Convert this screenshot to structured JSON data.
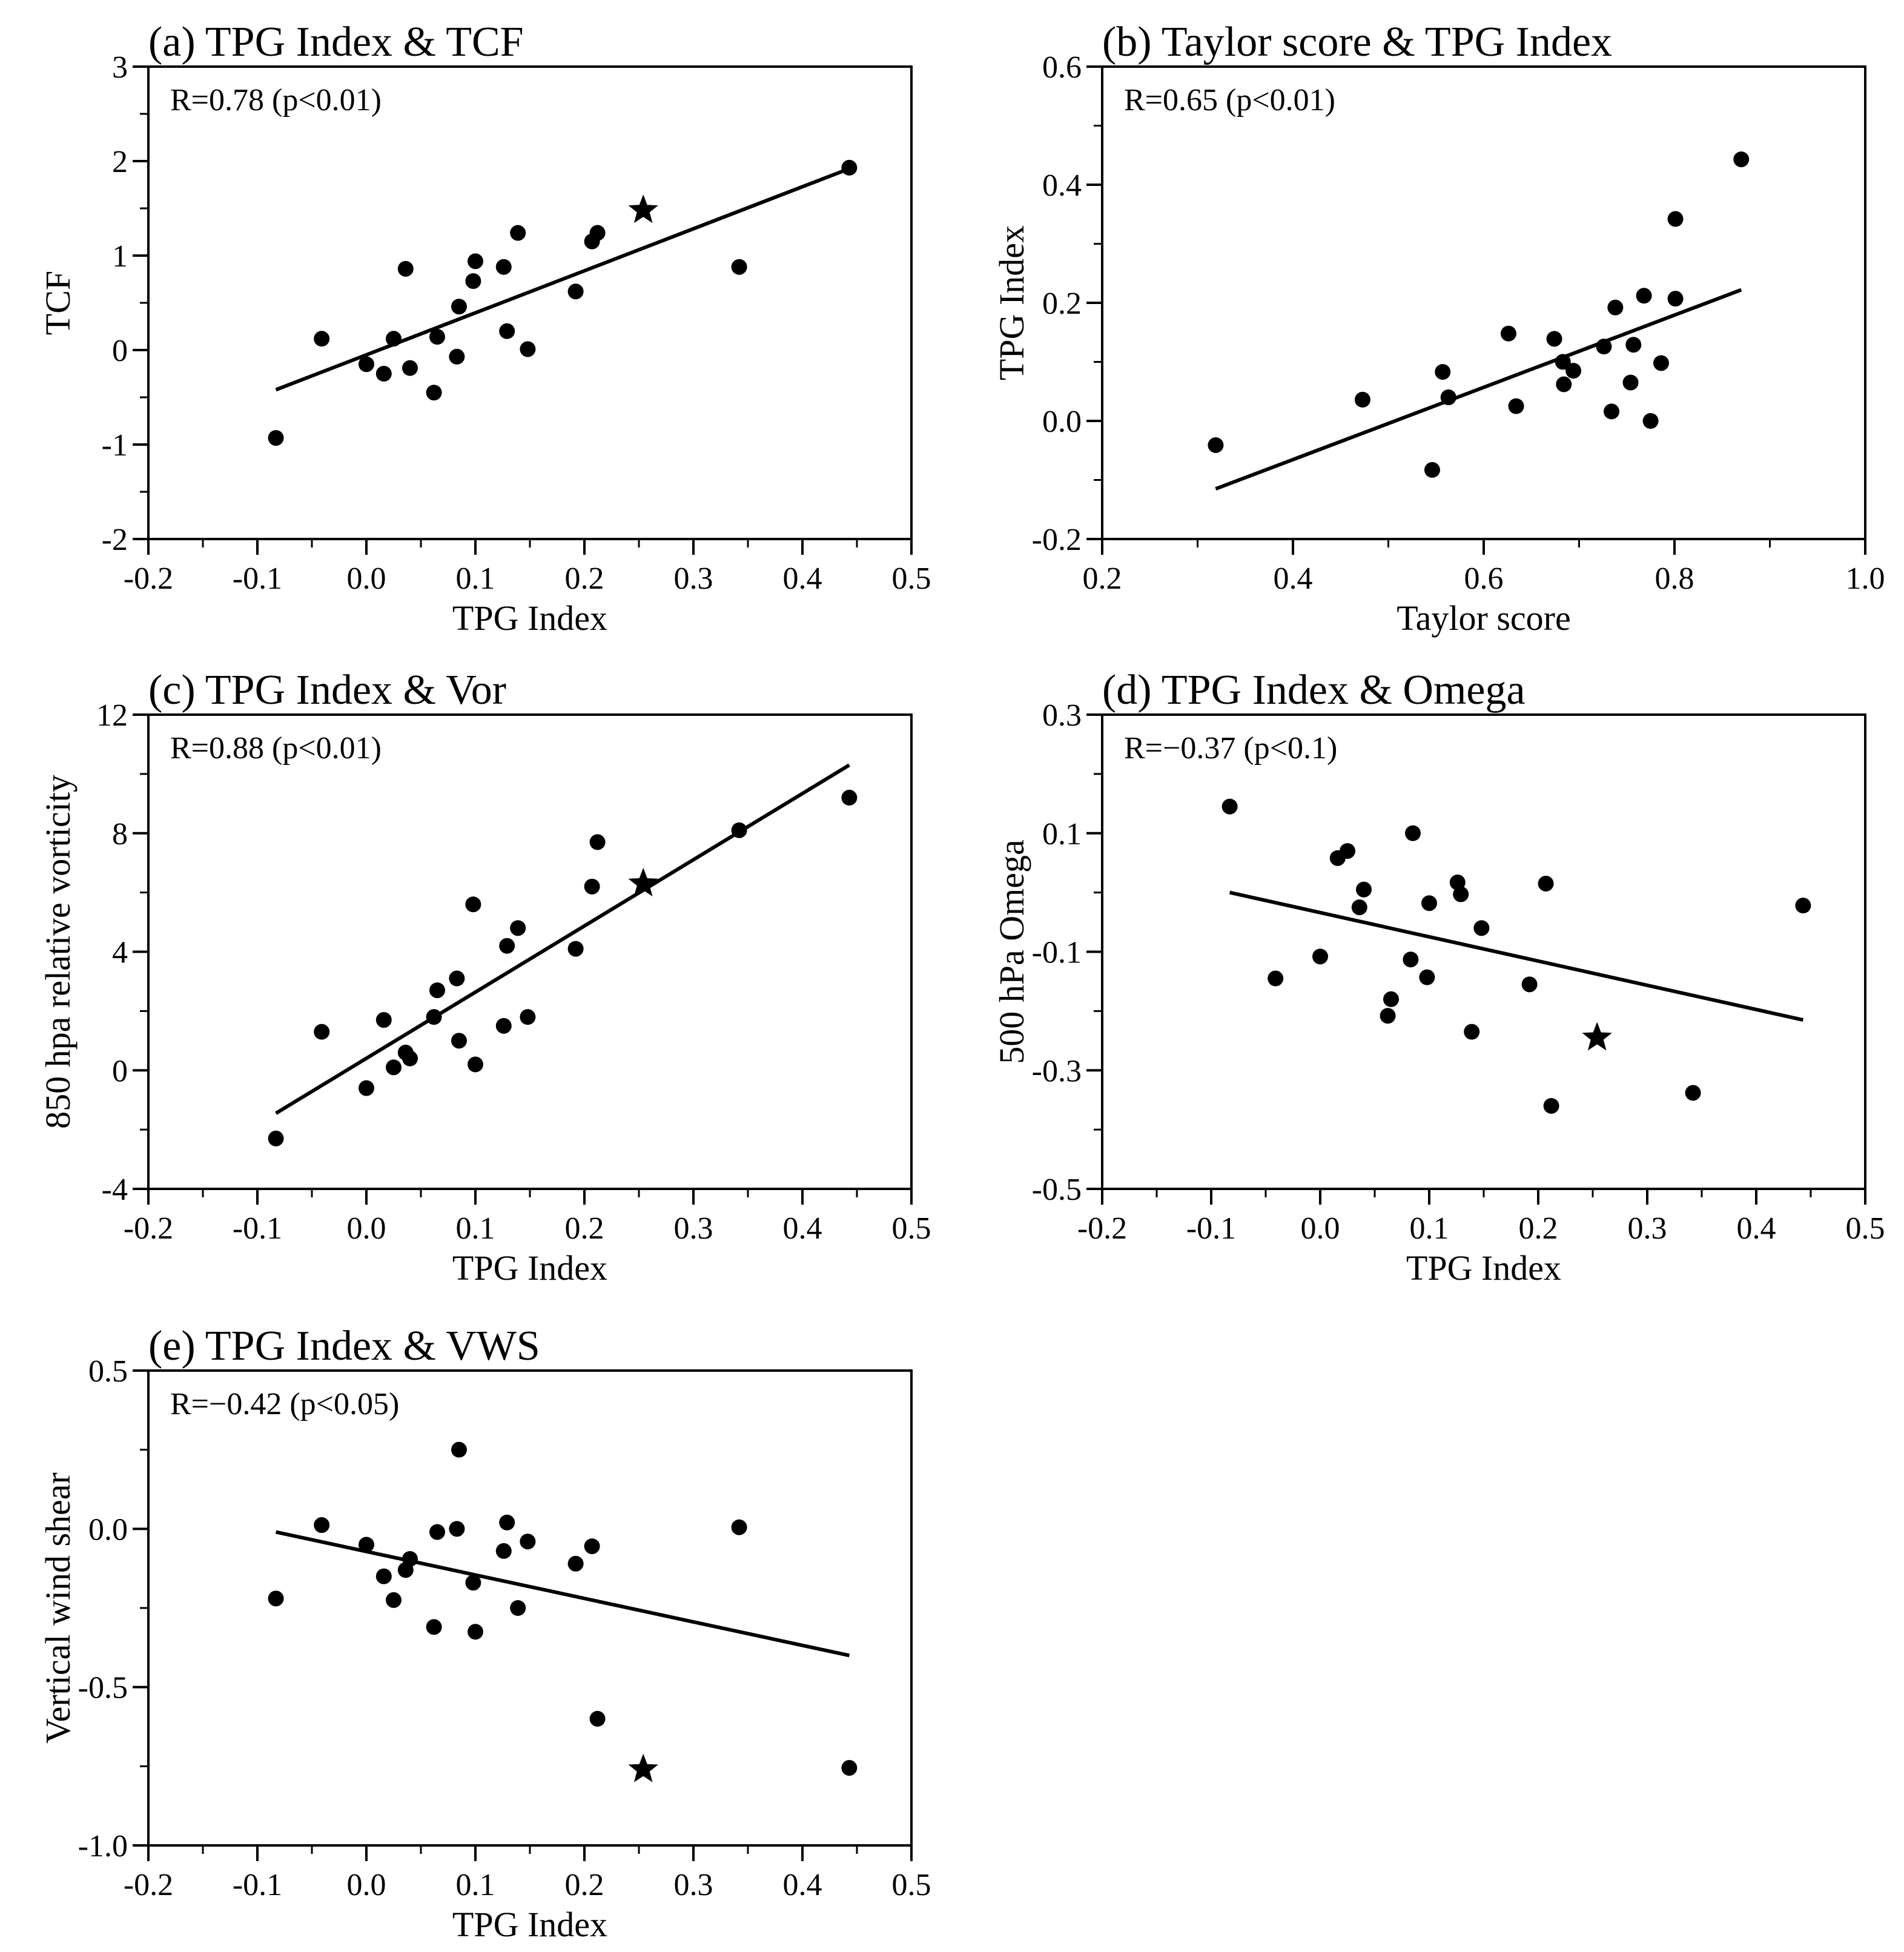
{
  "figure": {
    "background": "#ffffff",
    "ink": "#000000"
  },
  "chart_data": [
    {
      "type": "scatter",
      "title": "(a) TPG Index & TCF",
      "xlabel": "TPG Index",
      "ylabel": "TCF",
      "annotation": "R=0.78 (p<0.01)",
      "xlim": [
        -0.2,
        0.5
      ],
      "ylim": [
        -2,
        3
      ],
      "xticks": [
        -0.2,
        -0.1,
        0.0,
        0.1,
        0.2,
        0.3,
        0.4,
        0.5
      ],
      "xtick_labels": [
        "-0.2",
        "-0.1",
        "0.0",
        "0.1",
        "0.2",
        "0.3",
        "0.4",
        "0.5"
      ],
      "yticks": [
        -2,
        -1,
        0,
        1,
        2,
        3
      ],
      "ytick_labels": [
        "-2",
        "-1",
        "0",
        "1",
        "2",
        "3"
      ],
      "points": [
        [
          -0.083,
          -0.93
        ],
        [
          -0.041,
          0.12
        ],
        [
          0.0,
          -0.15
        ],
        [
          0.016,
          -0.25
        ],
        [
          0.025,
          0.12
        ],
        [
          0.036,
          0.86
        ],
        [
          0.04,
          -0.19
        ],
        [
          0.062,
          -0.45
        ],
        [
          0.065,
          0.14
        ],
        [
          0.083,
          -0.07
        ],
        [
          0.085,
          0.46
        ],
        [
          0.098,
          0.73
        ],
        [
          0.1,
          0.94
        ],
        [
          0.126,
          0.88
        ],
        [
          0.129,
          0.2
        ],
        [
          0.139,
          1.24
        ],
        [
          0.148,
          0.01
        ],
        [
          0.192,
          0.62
        ],
        [
          0.207,
          1.15
        ],
        [
          0.212,
          1.24
        ],
        [
          0.342,
          0.88
        ],
        [
          0.443,
          1.93
        ]
      ],
      "star": [
        0.254,
        1.48
      ],
      "fit_line": [
        [
          -0.083,
          -0.42
        ],
        [
          0.443,
          1.92
        ]
      ]
    },
    {
      "type": "scatter",
      "title": "(b) Taylor score & TPG Index",
      "xlabel": "Taylor score",
      "ylabel": "TPG Index",
      "annotation": "R=0.65 (p<0.01)",
      "xlim": [
        0.2,
        1.0
      ],
      "ylim": [
        -0.2,
        0.6
      ],
      "xticks": [
        0.2,
        0.4,
        0.6,
        0.8,
        1.0
      ],
      "xtick_labels": [
        "0.2",
        "0.4",
        "0.6",
        "0.8",
        "1.0"
      ],
      "yticks": [
        -0.2,
        0.0,
        0.2,
        0.4,
        0.6
      ],
      "ytick_labels": [
        "-0.2",
        "0.0",
        "0.2",
        "0.4",
        "0.6"
      ],
      "points": [
        [
          0.319,
          -0.041
        ],
        [
          0.473,
          0.036
        ],
        [
          0.546,
          -0.083
        ],
        [
          0.557,
          0.083
        ],
        [
          0.563,
          0.04
        ],
        [
          0.626,
          0.148
        ],
        [
          0.634,
          0.025
        ],
        [
          0.674,
          0.139
        ],
        [
          0.683,
          0.1
        ],
        [
          0.684,
          0.062
        ],
        [
          0.694,
          0.085
        ],
        [
          0.726,
          0.126
        ],
        [
          0.734,
          0.016
        ],
        [
          0.738,
          0.192
        ],
        [
          0.754,
          0.065
        ],
        [
          0.757,
          0.129
        ],
        [
          0.768,
          0.212
        ],
        [
          0.775,
          0.0
        ],
        [
          0.786,
          0.098
        ],
        [
          0.801,
          0.207
        ],
        [
          0.801,
          0.342
        ],
        [
          0.87,
          0.443
        ]
      ],
      "fit_line": [
        [
          0.319,
          -0.115
        ],
        [
          0.87,
          0.222
        ]
      ]
    },
    {
      "type": "scatter",
      "title": "(c) TPG Index & Vor",
      "xlabel": "TPG Index",
      "ylabel": "850 hpa relative vorticity",
      "annotation": "R=0.88 (p<0.01)",
      "xlim": [
        -0.2,
        0.5
      ],
      "ylim": [
        -4,
        12
      ],
      "xticks": [
        -0.2,
        -0.1,
        0.0,
        0.1,
        0.2,
        0.3,
        0.4,
        0.5
      ],
      "xtick_labels": [
        "-0.2",
        "-0.1",
        "0.0",
        "0.1",
        "0.2",
        "0.3",
        "0.4",
        "0.5"
      ],
      "yticks": [
        -4,
        0,
        4,
        8,
        12
      ],
      "ytick_labels": [
        "-4",
        "0",
        "4",
        "8",
        "12"
      ],
      "points": [
        [
          -0.083,
          -2.3
        ],
        [
          -0.041,
          1.3
        ],
        [
          0.0,
          -0.6
        ],
        [
          0.016,
          1.7
        ],
        [
          0.025,
          0.1
        ],
        [
          0.036,
          0.6
        ],
        [
          0.04,
          0.4
        ],
        [
          0.062,
          1.8
        ],
        [
          0.065,
          2.7
        ],
        [
          0.083,
          3.1
        ],
        [
          0.085,
          1.0
        ],
        [
          0.098,
          5.6
        ],
        [
          0.1,
          0.2
        ],
        [
          0.126,
          1.5
        ],
        [
          0.129,
          4.2
        ],
        [
          0.139,
          4.8
        ],
        [
          0.148,
          1.8
        ],
        [
          0.192,
          4.1
        ],
        [
          0.207,
          6.2
        ],
        [
          0.212,
          7.7
        ],
        [
          0.342,
          8.1
        ],
        [
          0.443,
          9.2
        ]
      ],
      "star": [
        0.254,
        6.3
      ],
      "fit_line": [
        [
          -0.083,
          -1.45
        ],
        [
          0.443,
          10.3
        ]
      ]
    },
    {
      "type": "scatter",
      "title": "(d) TPG Index & Omega",
      "xlabel": "TPG Index",
      "ylabel": "500 hPa Omega",
      "annotation": "R=−0.37 (p<0.1)",
      "xlim": [
        -0.2,
        0.5
      ],
      "ylim": [
        -0.5,
        0.3
      ],
      "xticks": [
        -0.2,
        -0.1,
        0.0,
        0.1,
        0.2,
        0.3,
        0.4,
        0.5
      ],
      "xtick_labels": [
        "-0.2",
        "-0.1",
        "0.0",
        "0.1",
        "0.2",
        "0.3",
        "0.4",
        "0.5"
      ],
      "yticks": [
        -0.5,
        -0.3,
        -0.1,
        0.1,
        0.3
      ],
      "ytick_labels": [
        "-0.5",
        "-0.3",
        "-0.1",
        "0.1",
        "0.3"
      ],
      "points": [
        [
          -0.083,
          0.145
        ],
        [
          -0.041,
          -0.145
        ],
        [
          0.0,
          -0.108
        ],
        [
          0.016,
          0.058
        ],
        [
          0.025,
          0.07
        ],
        [
          0.036,
          -0.025
        ],
        [
          0.04,
          0.005
        ],
        [
          0.062,
          -0.208
        ],
        [
          0.065,
          -0.18
        ],
        [
          0.083,
          -0.113
        ],
        [
          0.085,
          0.1
        ],
        [
          0.098,
          -0.143
        ],
        [
          0.1,
          -0.018
        ],
        [
          0.126,
          0.017
        ],
        [
          0.129,
          -0.003
        ],
        [
          0.139,
          -0.235
        ],
        [
          0.148,
          -0.06
        ],
        [
          0.192,
          -0.155
        ],
        [
          0.207,
          0.015
        ],
        [
          0.212,
          -0.36
        ],
        [
          0.342,
          -0.338
        ],
        [
          0.443,
          -0.022
        ]
      ],
      "star": [
        0.254,
        -0.245
      ],
      "fit_line": [
        [
          -0.083,
          0.0
        ],
        [
          0.443,
          -0.215
        ]
      ]
    },
    {
      "type": "scatter",
      "title": "(e) TPG Index & VWS",
      "xlabel": "TPG Index",
      "ylabel": "Vertical wind shear",
      "annotation": "R=−0.42 (p<0.05)",
      "xlim": [
        -0.2,
        0.5
      ],
      "ylim": [
        -1.0,
        0.5
      ],
      "xticks": [
        -0.2,
        -0.1,
        0.0,
        0.1,
        0.2,
        0.3,
        0.4,
        0.5
      ],
      "xtick_labels": [
        "-0.2",
        "-0.1",
        "0.0",
        "0.1",
        "0.2",
        "0.3",
        "0.4",
        "0.5"
      ],
      "yticks": [
        -1.0,
        -0.5,
        0.0,
        0.5
      ],
      "ytick_labels": [
        "-1.0",
        "-0.5",
        "0.0",
        "0.5"
      ],
      "points": [
        [
          -0.083,
          -0.22
        ],
        [
          -0.041,
          0.012
        ],
        [
          0.0,
          -0.05
        ],
        [
          0.016,
          -0.15
        ],
        [
          0.025,
          -0.225
        ],
        [
          0.036,
          -0.13
        ],
        [
          0.04,
          -0.095
        ],
        [
          0.062,
          -0.31
        ],
        [
          0.065,
          -0.01
        ],
        [
          0.083,
          0.0
        ],
        [
          0.085,
          0.25
        ],
        [
          0.098,
          -0.17
        ],
        [
          0.1,
          -0.325
        ],
        [
          0.126,
          -0.07
        ],
        [
          0.129,
          0.02
        ],
        [
          0.139,
          -0.25
        ],
        [
          0.148,
          -0.04
        ],
        [
          0.192,
          -0.11
        ],
        [
          0.207,
          -0.055
        ],
        [
          0.212,
          -0.6
        ],
        [
          0.342,
          0.005
        ],
        [
          0.443,
          -0.755
        ]
      ],
      "star": [
        0.254,
        -0.76
      ],
      "fit_line": [
        [
          -0.083,
          -0.01
        ],
        [
          0.443,
          -0.4
        ]
      ]
    }
  ]
}
